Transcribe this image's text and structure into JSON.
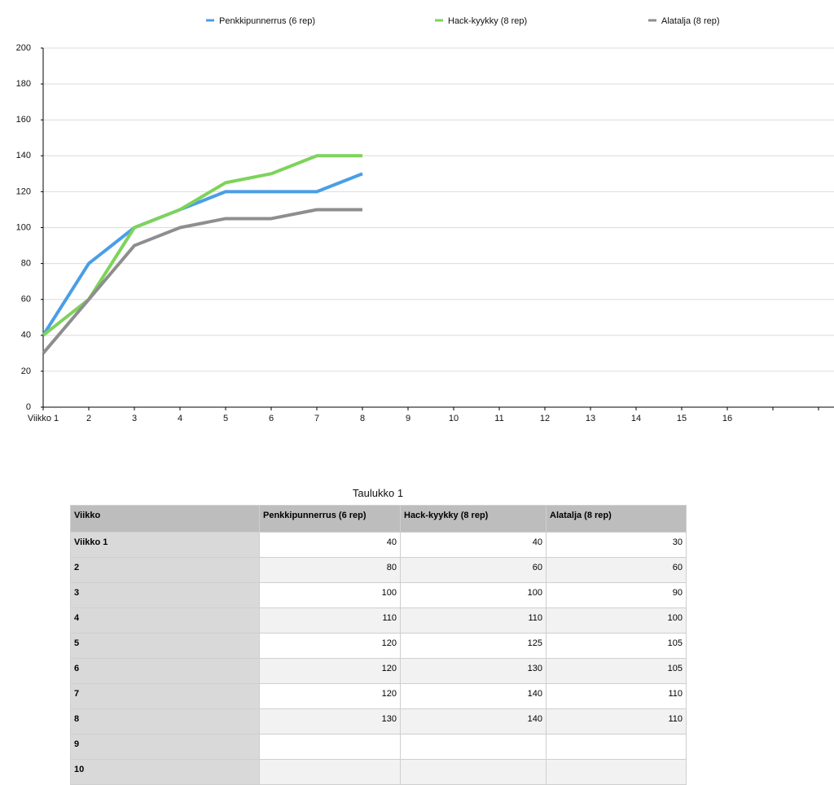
{
  "chart_data": {
    "type": "line",
    "categories": [
      "Viikko 1",
      "2",
      "3",
      "4",
      "5",
      "6",
      "7",
      "8",
      "9",
      "10",
      "11",
      "12",
      "13",
      "14",
      "15",
      "16",
      null,
      null
    ],
    "series": [
      {
        "name": "Penkkipunnerrus (6 rep)",
        "color": "#4a9ee6",
        "values": [
          40,
          80,
          100,
          110,
          120,
          120,
          120,
          130,
          null,
          null,
          null,
          null,
          null,
          null,
          null,
          null,
          null,
          null
        ]
      },
      {
        "name": "Hack-kyykky (8 rep)",
        "color": "#7ed35a",
        "values": [
          40,
          60,
          100,
          110,
          125,
          130,
          140,
          140,
          null,
          null,
          null,
          null,
          null,
          null,
          null,
          null,
          null,
          null
        ]
      },
      {
        "name": "Alatalja (8 rep)",
        "color": "#8e8e8e",
        "values": [
          30,
          60,
          90,
          100,
          105,
          105,
          110,
          110,
          null,
          null,
          null,
          null,
          null,
          null,
          null,
          null,
          null,
          null
        ]
      }
    ],
    "ylim": [
      0,
      200
    ],
    "yticks": [
      0,
      20,
      40,
      60,
      80,
      100,
      120,
      140,
      160,
      180,
      200
    ],
    "grid": true,
    "legend": "top"
  },
  "table": {
    "title": "Taulukko 1",
    "header": [
      "Viikko",
      "Penkkipunnerrus (6 rep)",
      "Hack-kyykky (8 rep)",
      "Alatalja (8 rep)"
    ],
    "rows": [
      [
        "Viikko 1",
        40,
        40,
        30
      ],
      [
        "2",
        80,
        60,
        60
      ],
      [
        "3",
        100,
        100,
        90
      ],
      [
        "4",
        110,
        110,
        100
      ],
      [
        "5",
        120,
        125,
        105
      ],
      [
        "6",
        120,
        130,
        105
      ],
      [
        "7",
        120,
        140,
        110
      ],
      [
        "8",
        130,
        140,
        110
      ],
      [
        "9"
      ],
      [
        "10"
      ]
    ]
  }
}
